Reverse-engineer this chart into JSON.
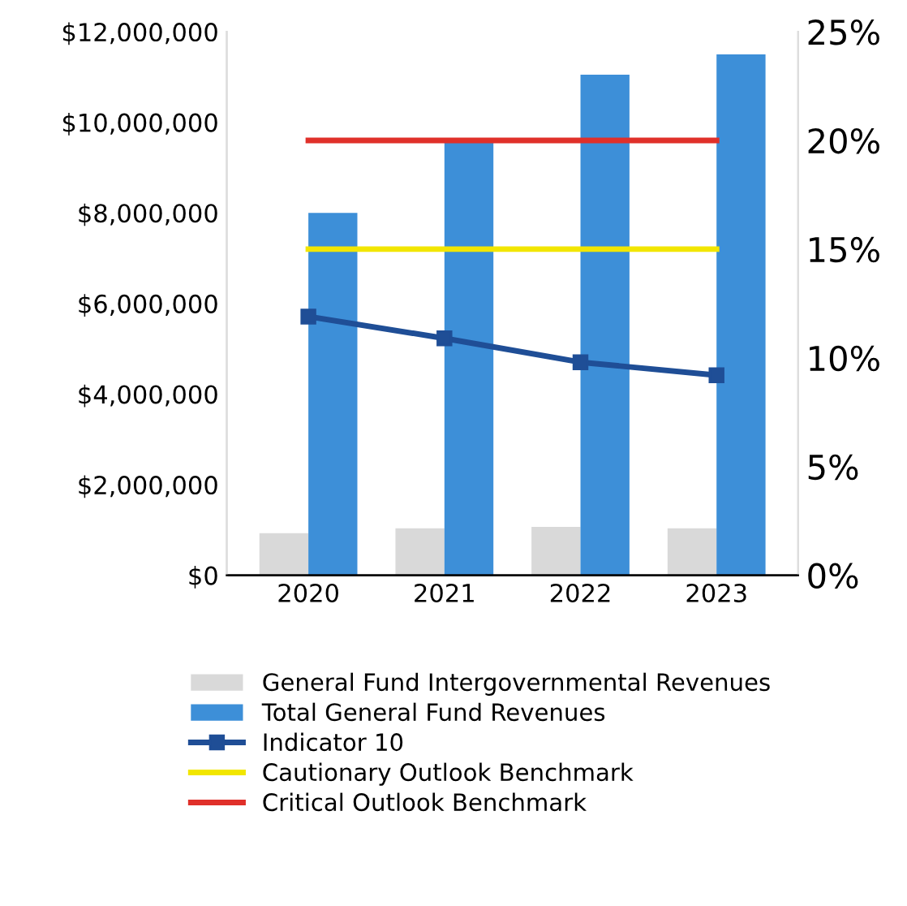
{
  "chart_data": {
    "type": "bar",
    "categories": [
      "2020",
      "2021",
      "2022",
      "2023"
    ],
    "series": [
      {
        "name": "General Fund Intergovernmental Revenues",
        "color": "#d9d9d9",
        "values": [
          930000,
          1040000,
          1070000,
          1040000
        ]
      },
      {
        "name": "Total General Fund Revenues",
        "color": "#3d8fd8",
        "values": [
          8000000,
          9550000,
          11050000,
          11500000
        ]
      },
      {
        "name": "Indicator 10",
        "type": "line",
        "axis": "y2",
        "color": "#1f4e96",
        "marker": "square",
        "values": [
          11.9,
          10.9,
          9.8,
          9.2
        ]
      },
      {
        "name": "Cautionary Outlook Benchmark",
        "type": "line",
        "axis": "y2",
        "color": "#f2e600",
        "values": [
          15,
          15,
          15,
          15
        ]
      },
      {
        "name": "Critical Outlook Benchmark",
        "type": "line",
        "axis": "y2",
        "color": "#e0302a",
        "values": [
          20,
          20,
          20,
          20
        ]
      }
    ],
    "ylim": [
      0,
      12000000
    ],
    "yticks": [
      {
        "value": 0,
        "label": "$0"
      },
      {
        "value": 2000000,
        "label": "$2,000,000"
      },
      {
        "value": 4000000,
        "label": "$4,000,000"
      },
      {
        "value": 6000000,
        "label": "$6,000,000"
      },
      {
        "value": 8000000,
        "label": "$8,000,000"
      },
      {
        "value": 10000000,
        "label": "$10,000,000"
      },
      {
        "value": 12000000,
        "label": "$12,000,000"
      }
    ],
    "y2lim": [
      0,
      25
    ],
    "y2ticks": [
      {
        "value": 0,
        "label": "0%"
      },
      {
        "value": 5,
        "label": "5%"
      },
      {
        "value": 10,
        "label": "10%"
      },
      {
        "value": 15,
        "label": "15%"
      },
      {
        "value": 20,
        "label": "20%"
      },
      {
        "value": 25,
        "label": "25%"
      }
    ],
    "grid": false,
    "legend": "bottom"
  }
}
